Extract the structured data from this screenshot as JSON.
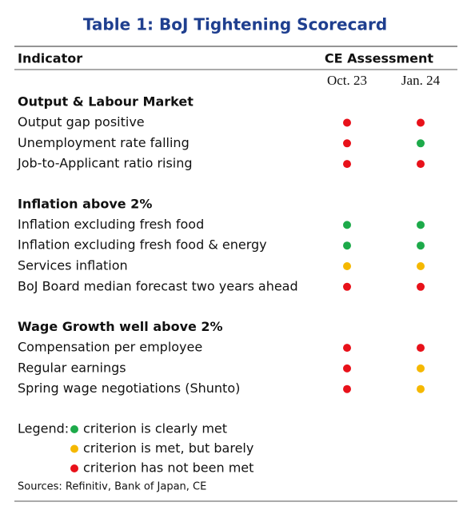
{
  "title": "Table 1: BoJ Tightening Scorecard",
  "header": {
    "indicator": "Indicator",
    "assessment": "CE Assessment",
    "columns": [
      "Oct. 23",
      "Jan. 24"
    ]
  },
  "sections": [
    {
      "title": "Output & Labour Market",
      "rows": [
        {
          "label": "Output gap positive",
          "dots": [
            "#e8111a",
            "#e8111a"
          ]
        },
        {
          "label": "Unemployment rate falling",
          "dots": [
            "#e8111a",
            "#1daa4a"
          ]
        },
        {
          "label": "Job-to-Applicant ratio rising",
          "dots": [
            "#e8111a",
            "#e8111a"
          ]
        }
      ]
    },
    {
      "title": "Inflation above 2%",
      "rows": [
        {
          "label": "Inflation excluding fresh food",
          "dots": [
            "#1daa4a",
            "#1daa4a"
          ]
        },
        {
          "label": "Inflation excluding fresh food & energy",
          "dots": [
            "#1daa4a",
            "#1daa4a"
          ]
        },
        {
          "label": "Services inflation",
          "dots": [
            "#f5b800",
            "#f5b800"
          ]
        },
        {
          "label": "BoJ Board median forecast two years ahead",
          "dots": [
            "#e8111a",
            "#e8111a"
          ]
        }
      ]
    },
    {
      "title": "Wage Growth well above 2%",
      "rows": [
        {
          "label": "Compensation per employee",
          "dots": [
            "#e8111a",
            "#e8111a"
          ]
        },
        {
          "label": "Regular earnings",
          "dots": [
            "#e8111a",
            "#f5b800"
          ]
        },
        {
          "label": "Spring wage negotiations (Shunto)",
          "dots": [
            "#e8111a",
            "#f5b800"
          ]
        }
      ]
    }
  ],
  "legend": {
    "label": "Legend:",
    "items": [
      {
        "color": "#1daa4a",
        "text": "criterion is clearly met"
      },
      {
        "color": "#f5b800",
        "text": "criterion is met, but barely"
      },
      {
        "color": "#e8111a",
        "text": "criterion has not been met"
      }
    ]
  },
  "sources": "Sources: Refinitiv, Bank of Japan, CE"
}
